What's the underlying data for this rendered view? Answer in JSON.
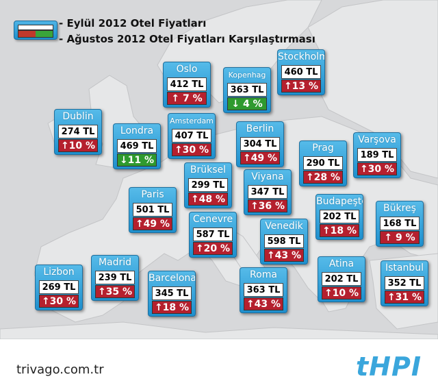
{
  "legend": {
    "line1": "- Eylül 2012 Otel Fiyatları",
    "line2": "- Ağustos 2012 Otel Fiyatları Karşılaştırması",
    "colors": {
      "up": "#b5202e",
      "down": "#2f9a2f"
    }
  },
  "cities": [
    {
      "name": "Oslo",
      "price": "412 TL",
      "change": "↑ 7 %",
      "direction": "up"
    },
    {
      "name": "Kopenhag",
      "price": "363 TL",
      "change": "↓ 4 %",
      "direction": "down"
    },
    {
      "name": "Stockholm",
      "price": "460 TL",
      "change": "↑13 %",
      "direction": "up"
    },
    {
      "name": "Dublin",
      "price": "274 TL",
      "change": "↑10 %",
      "direction": "up"
    },
    {
      "name": "Amsterdam",
      "price": "407 TL",
      "change": "↑30 %",
      "direction": "up"
    },
    {
      "name": "Londra",
      "price": "469 TL",
      "change": "↓11 %",
      "direction": "down"
    },
    {
      "name": "Berlin",
      "price": "304 TL",
      "change": "↑49 %",
      "direction": "up"
    },
    {
      "name": "Prag",
      "price": "290 TL",
      "change": "↑28 %",
      "direction": "up"
    },
    {
      "name": "Varşova",
      "price": "189 TL",
      "change": "↑30 %",
      "direction": "up"
    },
    {
      "name": "Brüksel",
      "price": "299 TL",
      "change": "↑48 %",
      "direction": "up"
    },
    {
      "name": "Viyana",
      "price": "347 TL",
      "change": "↑36 %",
      "direction": "up"
    },
    {
      "name": "Paris",
      "price": "501 TL",
      "change": "↑49 %",
      "direction": "up"
    },
    {
      "name": "Budapeşte",
      "price": "202 TL",
      "change": "↑18 %",
      "direction": "up"
    },
    {
      "name": "Bükreş",
      "price": "168 TL",
      "change": "↑ 9 %",
      "direction": "up"
    },
    {
      "name": "Cenevre",
      "price": "587 TL",
      "change": "↑20 %",
      "direction": "up"
    },
    {
      "name": "Venedik",
      "price": "598 TL",
      "change": "↑43 %",
      "direction": "up"
    },
    {
      "name": "Lizbon",
      "price": "269 TL",
      "change": "↑30 %",
      "direction": "up"
    },
    {
      "name": "Madrid",
      "price": "239 TL",
      "change": "↑35 %",
      "direction": "up"
    },
    {
      "name": "Barcelona",
      "price": "345 TL",
      "change": "↑18 %",
      "direction": "up"
    },
    {
      "name": "Roma",
      "price": "363 TL",
      "change": "↑43 %",
      "direction": "up"
    },
    {
      "name": "Atina",
      "price": "202 TL",
      "change": "↑10 %",
      "direction": "up"
    },
    {
      "name": "İstanbul",
      "price": "352 TL",
      "change": "↑31 %",
      "direction": "up"
    }
  ],
  "footer": {
    "site": "trivago.com.tr",
    "logo": "tHPI"
  }
}
